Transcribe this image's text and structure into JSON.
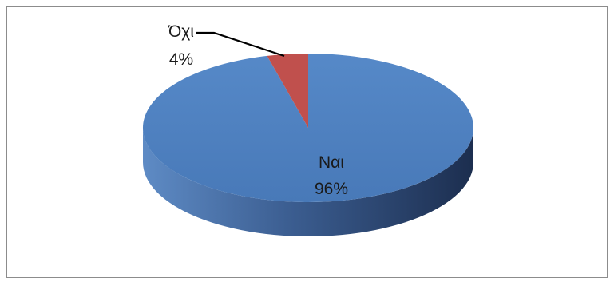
{
  "chart_data": {
    "type": "pie",
    "title": "",
    "style": "3d",
    "legend": "none",
    "categories": [
      "Ναι",
      "Όχι"
    ],
    "values": [
      96,
      4
    ],
    "unit": "%",
    "labels": [
      {
        "category": "Ναι",
        "percent": "96%"
      },
      {
        "category": "Όχι",
        "percent": "4%"
      }
    ],
    "colors": {
      "yes": "#4F81BD",
      "yes_side_dark": "#2A4470",
      "no": "#C0504D",
      "no_side": "#8E3330"
    }
  }
}
